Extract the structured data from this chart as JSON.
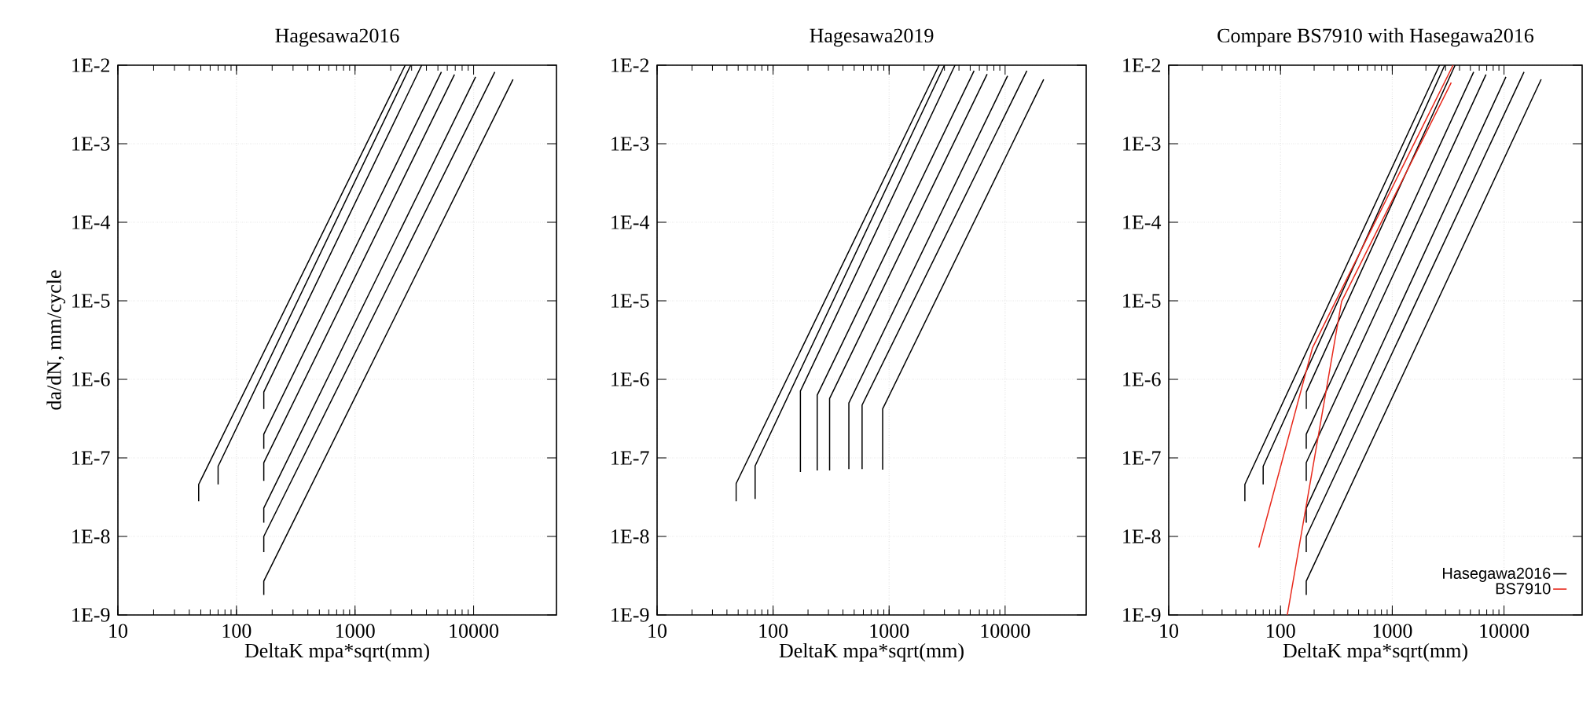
{
  "chart_data": [
    {
      "type": "line",
      "title": "Hagesawa2016",
      "xlabel": "DeltaK  mpa*sqrt(mm)",
      "ylabel": "da/dN, mm/cycle",
      "log": "xy",
      "grid": true,
      "xlim": [
        10,
        50000
      ],
      "ylim": [
        1e-09,
        0.01
      ],
      "xticks": [
        10,
        100,
        1000,
        10000
      ],
      "yticks": [
        {
          "value": 0.01,
          "label": "1E-2"
        },
        {
          "value": 0.001,
          "label": "1E-3"
        },
        {
          "value": 0.0001,
          "label": "1E-4"
        },
        {
          "value": 1e-05,
          "label": "1E-5"
        },
        {
          "value": 1e-06,
          "label": "1E-6"
        },
        {
          "value": 1e-07,
          "label": "1E-7"
        },
        {
          "value": 1e-08,
          "label": "1E-8"
        },
        {
          "value": 1e-09,
          "label": "1E-9"
        }
      ],
      "series": [
        {
          "color": "#000000",
          "x": [
            48,
            48,
            2650
          ],
          "values": [
            2.8e-08,
            4.6e-08,
            0.01
          ]
        },
        {
          "color": "#000000",
          "x": [
            70,
            70,
            2950
          ],
          "values": [
            4.6e-08,
            7.8e-08,
            0.01
          ]
        },
        {
          "color": "#000000",
          "x": [
            170,
            170,
            3650
          ],
          "values": [
            4.2e-07,
            6.9e-07,
            0.01
          ]
        },
        {
          "color": "#000000",
          "x": [
            170,
            170,
            5350
          ],
          "values": [
            1.3e-07,
            2e-07,
            0.0082
          ]
        },
        {
          "color": "#000000",
          "x": [
            170,
            170,
            6900
          ],
          "values": [
            5.1e-08,
            8.7e-08,
            0.0076
          ]
        },
        {
          "color": "#000000",
          "x": [
            170,
            170,
            10400
          ],
          "values": [
            1.5e-08,
            2.3e-08,
            0.0071
          ]
        },
        {
          "color": "#000000",
          "x": [
            170,
            170,
            15100
          ],
          "values": [
            6.3e-09,
            1e-08,
            0.0082
          ]
        },
        {
          "color": "#000000",
          "x": [
            170,
            170,
            21500
          ],
          "values": [
            1.8e-09,
            2.7e-09,
            0.0066
          ]
        }
      ]
    },
    {
      "type": "line",
      "title": "Hagesawa2019",
      "xlabel": "DeltaK  mpa*sqrt(mm)",
      "log": "xy",
      "grid": true,
      "xlim": [
        10,
        50000
      ],
      "ylim": [
        1e-09,
        0.01
      ],
      "xticks": [
        10,
        100,
        1000,
        10000
      ],
      "yticks": [
        {
          "value": 0.01,
          "label": "1E-2"
        },
        {
          "value": 0.001,
          "label": "1E-3"
        },
        {
          "value": 0.0001,
          "label": "1E-4"
        },
        {
          "value": 1e-05,
          "label": "1E-5"
        },
        {
          "value": 1e-06,
          "label": "1E-6"
        },
        {
          "value": 1e-07,
          "label": "1E-7"
        },
        {
          "value": 1e-08,
          "label": "1E-8"
        },
        {
          "value": 1e-09,
          "label": "1E-9"
        }
      ],
      "series": [
        {
          "color": "#000000",
          "x": [
            48,
            48,
            2700
          ],
          "values": [
            2.8e-08,
            4.7e-08,
            0.01
          ]
        },
        {
          "color": "#000000",
          "x": [
            70,
            70,
            3000
          ],
          "values": [
            3e-08,
            7.9e-08,
            0.01
          ]
        },
        {
          "color": "#000000",
          "x": [
            172,
            172,
            3700
          ],
          "values": [
            6.6e-08,
            7.1e-07,
            0.01
          ]
        },
        {
          "color": "#000000",
          "x": [
            240,
            240,
            5400
          ],
          "values": [
            6.9e-08,
            6.3e-07,
            0.0085
          ]
        },
        {
          "color": "#000000",
          "x": [
            307,
            307,
            7000
          ],
          "values": [
            6.9e-08,
            5.7e-07,
            0.0077
          ]
        },
        {
          "color": "#000000",
          "x": [
            450,
            450,
            10500
          ],
          "values": [
            7.2e-08,
            5e-07,
            0.0073
          ]
        },
        {
          "color": "#000000",
          "x": [
            585,
            585,
            15400
          ],
          "values": [
            7.2e-08,
            4.7e-07,
            0.0085
          ]
        },
        {
          "color": "#000000",
          "x": [
            880,
            880,
            21500
          ],
          "values": [
            7.1e-08,
            4.2e-07,
            0.0066
          ]
        }
      ]
    },
    {
      "type": "line",
      "title": "Compare BS7910 with Hasegawa2016",
      "xlabel": "DeltaK  mpa*sqrt(mm)",
      "log": "xy",
      "grid": true,
      "legend": "bottom right",
      "xlim": [
        10,
        50000
      ],
      "ylim": [
        1e-09,
        0.01
      ],
      "xticks": [
        10,
        100,
        1000,
        10000
      ],
      "yticks": [
        {
          "value": 0.01,
          "label": "1E-2"
        },
        {
          "value": 0.001,
          "label": "1E-3"
        },
        {
          "value": 0.0001,
          "label": "1E-4"
        },
        {
          "value": 1e-05,
          "label": "1E-5"
        },
        {
          "value": 1e-06,
          "label": "1E-6"
        },
        {
          "value": 1e-07,
          "label": "1E-7"
        },
        {
          "value": 1e-08,
          "label": "1E-8"
        },
        {
          "value": 1e-09,
          "label": "1E-9"
        }
      ],
      "series": [
        {
          "name": "Hasegawa2016",
          "color": "#000000",
          "x": [
            48,
            48,
            2650
          ],
          "values": [
            2.8e-08,
            4.6e-08,
            0.01
          ]
        },
        {
          "color": "#000000",
          "x": [
            70,
            70,
            2950
          ],
          "values": [
            4.6e-08,
            7.8e-08,
            0.01
          ]
        },
        {
          "color": "#000000",
          "x": [
            170,
            170,
            3650
          ],
          "values": [
            4.2e-07,
            6.9e-07,
            0.01
          ]
        },
        {
          "color": "#000000",
          "x": [
            170,
            170,
            5350
          ],
          "values": [
            1.3e-07,
            2e-07,
            0.0082
          ]
        },
        {
          "color": "#000000",
          "x": [
            170,
            170,
            6900
          ],
          "values": [
            5.1e-08,
            8.7e-08,
            0.0076
          ]
        },
        {
          "color": "#000000",
          "x": [
            170,
            170,
            10400
          ],
          "values": [
            1.5e-08,
            2.3e-08,
            0.0071
          ]
        },
        {
          "color": "#000000",
          "x": [
            170,
            170,
            15100
          ],
          "values": [
            6.3e-09,
            1e-08,
            0.0082
          ]
        },
        {
          "color": "#000000",
          "x": [
            170,
            170,
            21500
          ],
          "values": [
            1.8e-09,
            2.7e-09,
            0.0066
          ]
        },
        {
          "name": "BS7910",
          "color": "#e8291c",
          "x": [
            64,
            193,
            3500
          ],
          "values": [
            7.2e-09,
            2.5e-06,
            0.01
          ]
        },
        {
          "color": "#e8291c",
          "x": [
            115,
            352,
            3370
          ],
          "values": [
            1e-09,
            9.8e-06,
            0.006
          ]
        }
      ]
    }
  ]
}
